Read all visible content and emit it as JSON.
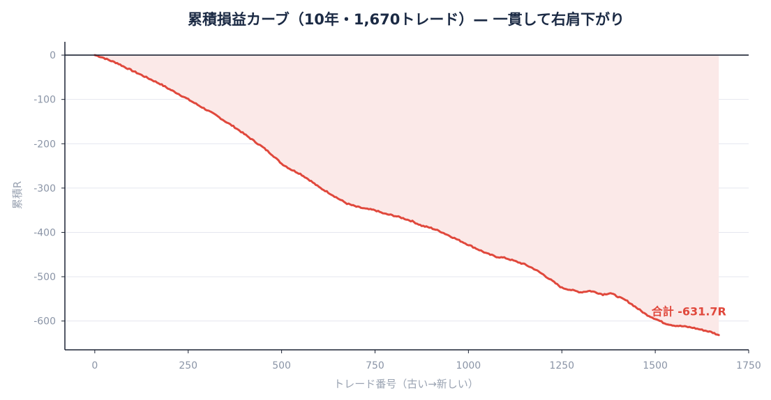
{
  "chart_data": {
    "type": "area",
    "title": "累積損益カーブ（10年・1,670トレード）— 一貫して右肩下がり",
    "xlabel": "トレード番号（古い→新しい）",
    "ylabel": "累積R",
    "xlim": [
      -80,
      1750
    ],
    "ylim": [
      -665,
      30
    ],
    "xticks": [
      0,
      250,
      500,
      750,
      1000,
      1250,
      1500,
      1750
    ],
    "yticks": [
      0,
      -100,
      -200,
      -300,
      -400,
      -500,
      -600
    ],
    "grid": "horizontal",
    "zero_line": true,
    "series": [
      {
        "color": "#e0483c",
        "fill_color": "#fbe9e8",
        "x": [
          0,
          20,
          40,
          60,
          80,
          100,
          125,
          150,
          175,
          200,
          225,
          250,
          275,
          300,
          325,
          350,
          375,
          400,
          425,
          450,
          475,
          500,
          525,
          550,
          575,
          600,
          625,
          650,
          675,
          700,
          725,
          750,
          775,
          800,
          825,
          850,
          875,
          900,
          925,
          950,
          975,
          1000,
          1025,
          1050,
          1075,
          1100,
          1125,
          1150,
          1175,
          1200,
          1225,
          1250,
          1275,
          1300,
          1325,
          1340,
          1360,
          1380,
          1400,
          1425,
          1450,
          1475,
          1500,
          1525,
          1550,
          1575,
          1600,
          1625,
          1650,
          1670
        ],
        "y": [
          0,
          -5,
          -12,
          -18,
          -27,
          -35,
          -45,
          -55,
          -65,
          -77,
          -88,
          -100,
          -112,
          -124,
          -136,
          -150,
          -163,
          -178,
          -193,
          -208,
          -225,
          -245,
          -258,
          -268,
          -282,
          -298,
          -310,
          -323,
          -335,
          -342,
          -347,
          -350,
          -358,
          -362,
          -368,
          -375,
          -385,
          -390,
          -398,
          -408,
          -418,
          -428,
          -438,
          -448,
          -455,
          -458,
          -465,
          -472,
          -482,
          -495,
          -510,
          -525,
          -530,
          -535,
          -532,
          -535,
          -540,
          -537,
          -545,
          -555,
          -570,
          -585,
          -595,
          -605,
          -610,
          -612,
          -615,
          -620,
          -625,
          -631.7
        ]
      }
    ],
    "annotations": [
      {
        "text": "合計 -631.7R",
        "x": 1690,
        "y": -587
      }
    ]
  }
}
